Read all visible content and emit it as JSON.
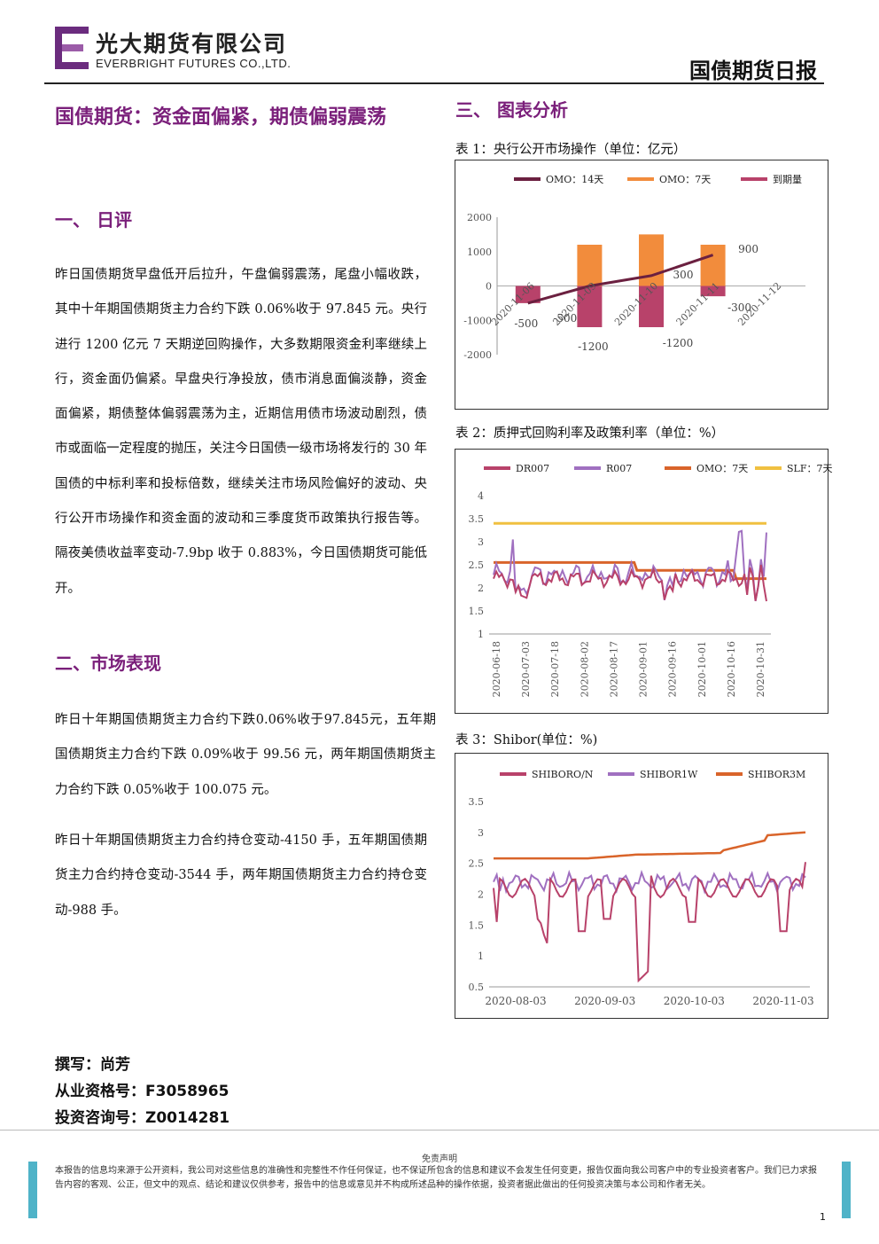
{
  "header": {
    "company_cn": "光大期货有限公司",
    "company_en": "EVERBRIGHT FUTURES CO.,LTD.",
    "report_name": "国债期货日报",
    "logo_color": "#6b2c7e"
  },
  "title": "国债期货：资金面偏紧，期债偏弱震荡",
  "section1": {
    "title": "一、 日评",
    "text": "昨日国债期货早盘低开后拉升，午盘偏弱震荡，尾盘小幅收跌，其中十年期国债期货主力合约下跌 0.06%收于 97.845 元。央行进行 1200 亿元 7 天期逆回购操作，大多数期限资金利率继续上行，资金面仍偏紧。早盘央行净投放，债市消息面偏淡静，资金面偏紧，期债整体偏弱震荡为主，近期信用债市场波动剧烈，债市或面临一定程度的抛压，关注今日国债一级市场将发行的 30 年国债的中标利率和投标倍数，继续关注市场风险偏好的波动、央行公开市场操作和资金面的波动和三季度货币政策执行报告等。隔夜美债收益率变动-7.9bp 收于 0.883%，今日国债期货可能低开。"
  },
  "section2": {
    "title": "二、市场表现",
    "p1": "昨日十年期国债期货主力合约下跌0.06%收于97.845元，五年期国债期货主力合约下跌 0.09%收于 99.56 元，两年期国债期货主力合约下跌 0.05%收于 100.075 元。",
    "p2": "昨日十年期国债期货主力合约持仓变动-4150 手，五年期国债期货主力合约持仓变动-3544 手，两年期国债期货主力合约持仓变动-988 手。"
  },
  "section3": {
    "title": "三、 图表分析"
  },
  "author": {
    "writer": "撰写：尚芳",
    "qualification": "从业资格号：F3058965",
    "consult": "投资咨询号：Z0014281"
  },
  "footer": {
    "disclaimer_title": "免责声明",
    "disclaimer": "本报告的信息均来源于公开资料，我公司对这些信息的准确性和完整性不作任何保证，也不保证所包含的信息和建议不会发生任何变更，报告仅面向我公司客户中的专业投资者客户。我们已力求报告内容的客观、公正，但文中的观点、结论和建议仅供参考，报告中的信息或意见并不构成所述品种的操作依据，投资者据此做出的任何投资决策与本公司和作者无关。",
    "page": "1"
  },
  "chart_data": [
    {
      "caption": "表 1：央行公开市场操作（单位：亿元）",
      "type": "bar",
      "categories": [
        "2020-11-06",
        "2020-11-09",
        "2020-11-10",
        "2020-11-11",
        "2020-11-12"
      ],
      "series": [
        {
          "name": "OMO：14天",
          "type": "line",
          "values": [
            -500,
            0,
            300,
            900,
            null
          ],
          "color": "#6b2040"
        },
        {
          "name": "OMO：7天",
          "values": [
            null,
            1200,
            1500,
            1200,
            null
          ],
          "color": "#f28c3c"
        },
        {
          "name": "到期量",
          "values": [
            -500,
            -1200,
            -1200,
            -300,
            null
          ],
          "color": "#b8426a"
        }
      ],
      "data_labels": [
        "-500",
        "-500",
        "-1200",
        "300",
        "-1200",
        "900",
        "-300"
      ],
      "y_ticks": [
        "2000",
        "1000",
        "0",
        "-1000",
        "-2000"
      ],
      "x_tick_labels": [
        "2020-11-06",
        "2020-11-09",
        "2020-11-10",
        "2020-11-11",
        "2020-11-12"
      ],
      "ylim": [
        -2000,
        2000
      ],
      "legend": "top"
    },
    {
      "caption": "表 2：质押式回购利率及政策利率（单位：%）",
      "type": "line",
      "series": [
        {
          "name": "DR007",
          "color": "#b8426a"
        },
        {
          "name": "R007",
          "color": "#a070c0"
        },
        {
          "name": "OMO：7天",
          "color": "#d9642a"
        },
        {
          "name": "SLF：7天",
          "color": "#f0c040"
        }
      ],
      "y_ticks": [
        "4",
        "3.5",
        "3",
        "2.5",
        "2",
        "1.5",
        "1"
      ],
      "x_tick_labels": [
        "2020-06-18",
        "2020-07-03",
        "2020-07-18",
        "2020-08-02",
        "2020-08-17",
        "2020-09-01",
        "2020-09-16",
        "2020-10-01",
        "2020-10-16",
        "2020-10-31"
      ],
      "ylim": [
        1,
        4
      ],
      "legend": "top"
    },
    {
      "caption": "表 3：Shibor(单位：%)",
      "type": "line",
      "series": [
        {
          "name": "SHIBORO/N",
          "color": "#b8426a"
        },
        {
          "name": "SHIBOR1W",
          "color": "#a070c0"
        },
        {
          "name": "SHIBOR3M",
          "color": "#d9642a"
        }
      ],
      "y_ticks": [
        "3.5",
        "3",
        "2.5",
        "2",
        "1.5",
        "1",
        "0.5"
      ],
      "x_tick_labels": [
        "2020-08-03",
        "2020-09-03",
        "2020-10-03",
        "2020-11-03"
      ],
      "ylim": [
        0.5,
        3.5
      ],
      "legend": "top"
    }
  ]
}
